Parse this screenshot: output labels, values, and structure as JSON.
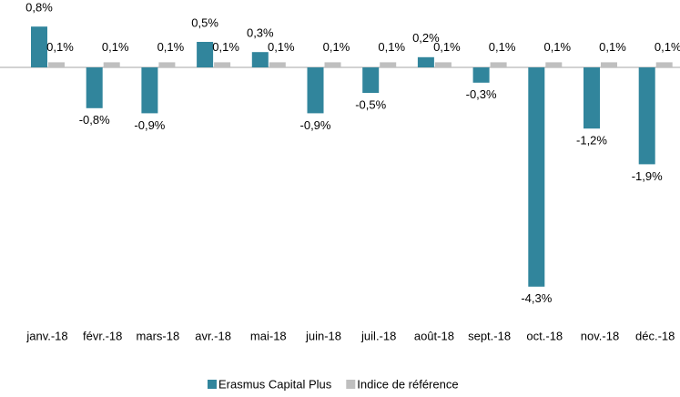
{
  "chart_data": {
    "type": "bar",
    "categories": [
      "janv.-18",
      "févr.-18",
      "mars-18",
      "avr.-18",
      "mai-18",
      "juin-18",
      "juil.-18",
      "août-18",
      "sept.-18",
      "oct.-18",
      "nov.-18",
      "déc.-18"
    ],
    "series": [
      {
        "name": "Erasmus Capital Plus",
        "color": "#31859c",
        "values": [
          0.8,
          -0.8,
          -0.9,
          0.5,
          0.3,
          -0.9,
          -0.5,
          0.2,
          -0.3,
          -4.3,
          -1.2,
          -1.9
        ],
        "value_labels": [
          "0,8%",
          "-0,8%",
          "-0,9%",
          "0,5%",
          "0,3%",
          "-0,9%",
          "-0,5%",
          "0,2%",
          "-0,3%",
          "-4,3%",
          "-1,2%",
          "-1,9%"
        ]
      },
      {
        "name": "Indice de référence",
        "color": "#bfbfbf",
        "values": [
          0.1,
          0.1,
          0.1,
          0.1,
          0.1,
          0.1,
          0.1,
          0.1,
          0.1,
          0.1,
          0.1,
          0.1
        ],
        "value_labels": [
          "0,1%",
          "0,1%",
          "0,1%",
          "0,1%",
          "0,1%",
          "0,1%",
          "0,1%",
          "0,1%",
          "0,1%",
          "0,1%",
          "0,1%",
          "0,1%"
        ]
      }
    ],
    "legend": "bottom"
  }
}
